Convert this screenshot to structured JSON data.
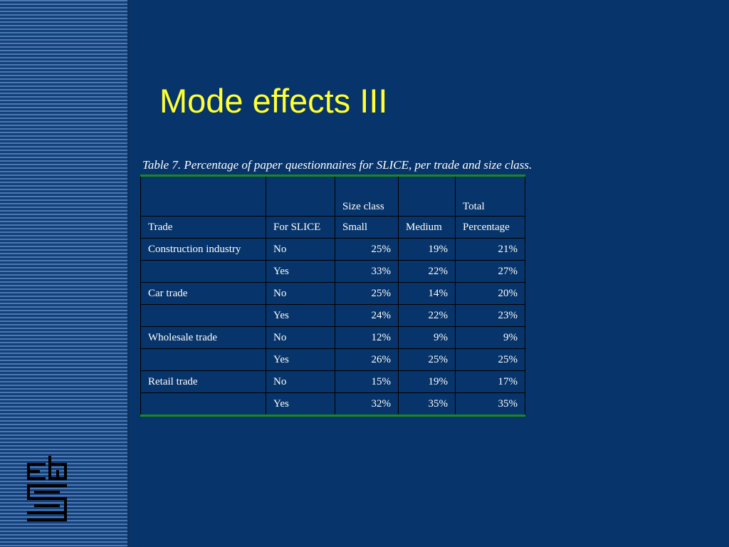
{
  "slide": {
    "title": "Mode effects III",
    "caption": "Table 7.  Percentage of paper questionnaires for SLICE, per trade and size class."
  },
  "table": {
    "header_row1": [
      "",
      "",
      "Size class",
      "",
      "Total"
    ],
    "header_row2": [
      "Trade",
      "For SLICE",
      "Small",
      "Medium",
      "Percentage"
    ],
    "rows": [
      {
        "trade": "Construction industry",
        "slice": "No",
        "small": "25%",
        "medium": "19%",
        "total": "21%"
      },
      {
        "trade": "",
        "slice": "Yes",
        "small": "33%",
        "medium": "22%",
        "total": "27%"
      },
      {
        "trade": "Car trade",
        "slice": "No",
        "small": "25%",
        "medium": "14%",
        "total": "20%"
      },
      {
        "trade": "",
        "slice": "Yes",
        "small": "24%",
        "medium": "22%",
        "total": "23%"
      },
      {
        "trade": "Wholesale trade",
        "slice": "No",
        "small": "12%",
        "medium": "9%",
        "total": "9%"
      },
      {
        "trade": "",
        "slice": "Yes",
        "small": "26%",
        "medium": "25%",
        "total": "25%"
      },
      {
        "trade": "Retail trade",
        "slice": "No",
        "small": "15%",
        "medium": "19%",
        "total": "17%"
      },
      {
        "trade": "",
        "slice": "Yes",
        "small": "32%",
        "medium": "35%",
        "total": "35%"
      }
    ]
  },
  "logo": {
    "icon": "cbs-logo-icon",
    "lettering": "cbs"
  },
  "colors": {
    "background": "#07346a",
    "title": "#ffff33",
    "text": "#ffffff",
    "rule": "#198a1f",
    "sidebar_light": "#4a79b3",
    "sidebar_dark": "#153f78"
  }
}
